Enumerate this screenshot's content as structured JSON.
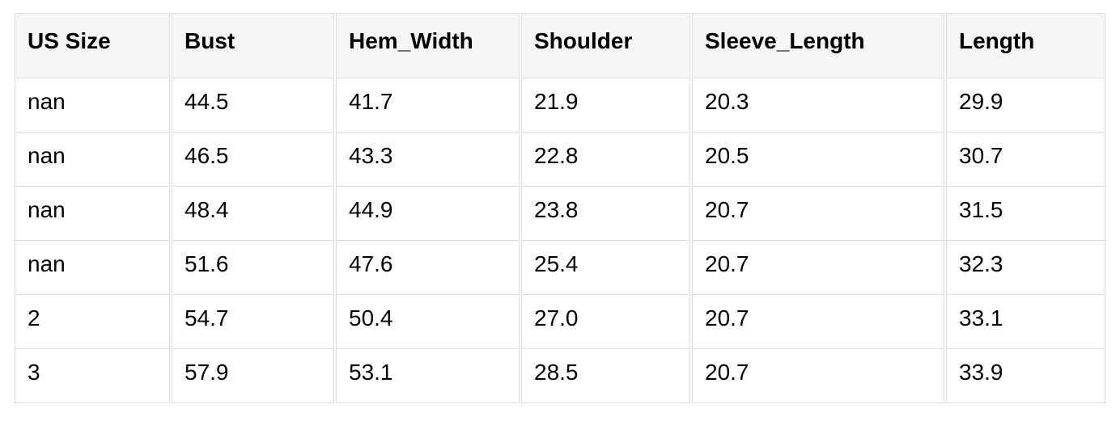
{
  "chart_data": {
    "type": "table",
    "columns": [
      "US Size",
      "Bust",
      "Hem_Width",
      "Shoulder",
      "Sleeve_Length",
      "Length"
    ],
    "rows": [
      [
        "nan",
        "44.5",
        "41.7",
        "21.9",
        "20.3",
        "29.9"
      ],
      [
        "nan",
        "46.5",
        "43.3",
        "22.8",
        "20.5",
        "30.7"
      ],
      [
        "nan",
        "48.4",
        "44.9",
        "23.8",
        "20.7",
        "31.5"
      ],
      [
        "nan",
        "51.6",
        "47.6",
        "25.4",
        "20.7",
        "32.3"
      ],
      [
        "2",
        "54.7",
        "50.4",
        "27.0",
        "20.7",
        "33.1"
      ],
      [
        "3",
        "57.9",
        "53.1",
        "28.5",
        "20.7",
        "33.9"
      ]
    ]
  },
  "style": {
    "header_bg": "#f5f5f5",
    "border_color": "#dedede",
    "text_color": "#000000",
    "row_bg": "#ffffff"
  }
}
